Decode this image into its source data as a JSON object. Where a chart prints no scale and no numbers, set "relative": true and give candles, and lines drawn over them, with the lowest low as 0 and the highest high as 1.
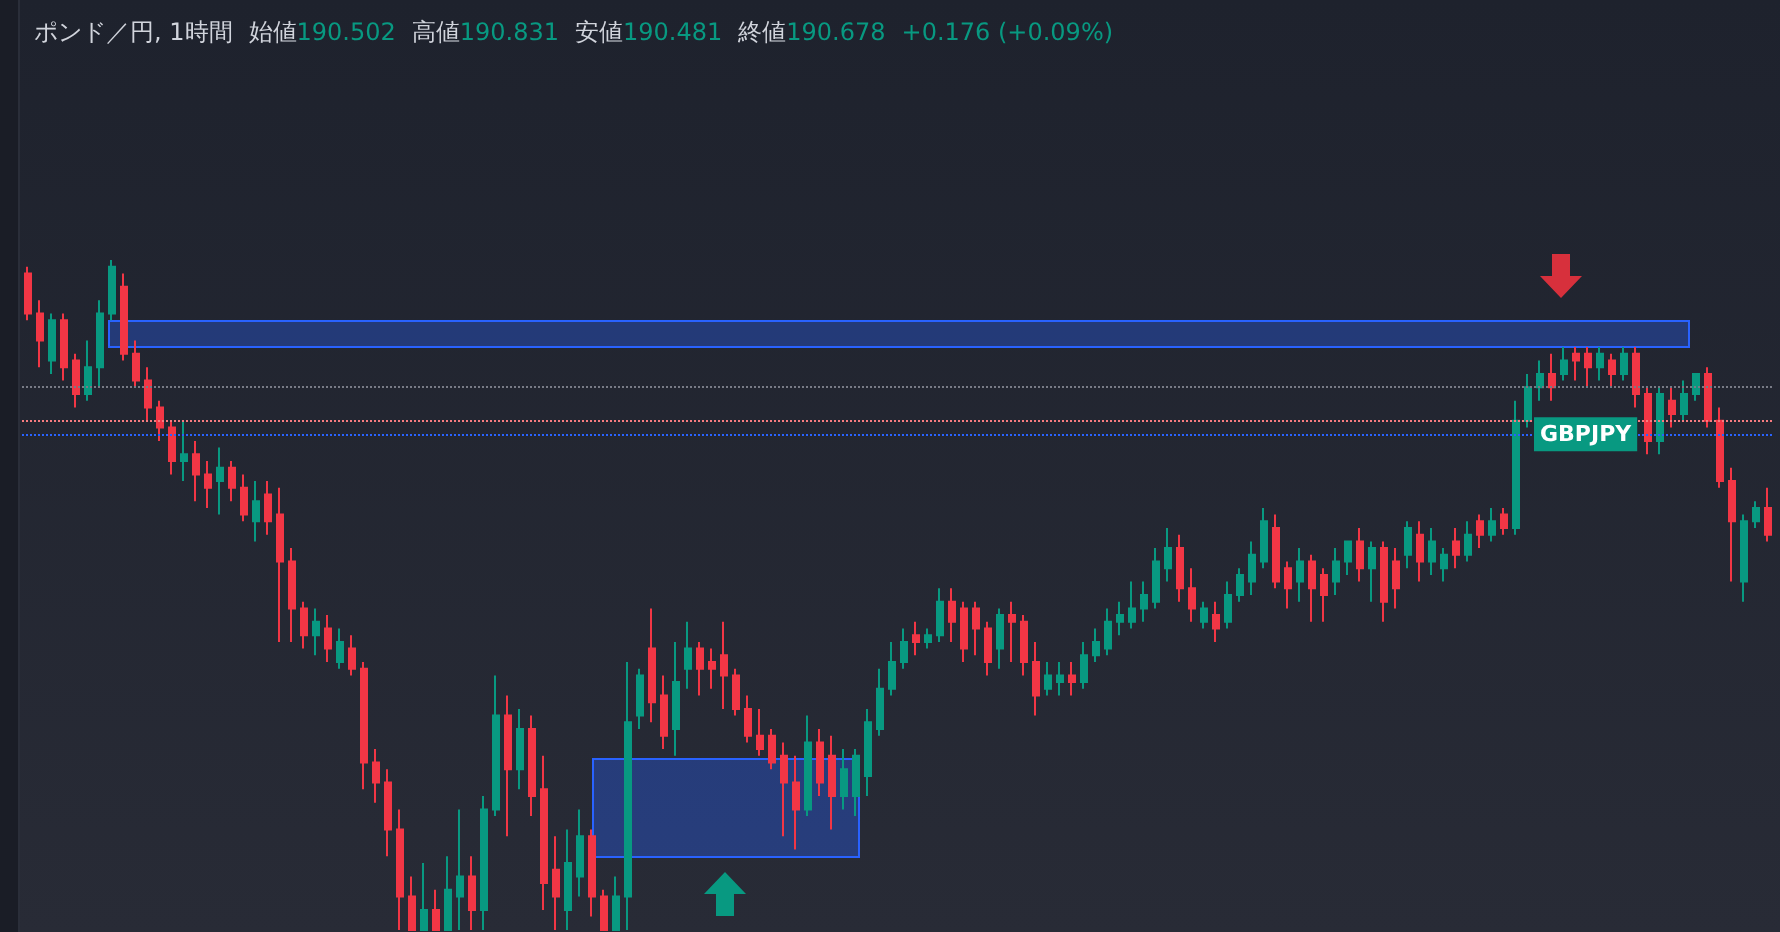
{
  "chart_data": {
    "type": "candlestick",
    "title": "ポンド／円, 1時間",
    "annotations": [
      "始値190.502",
      "高値190.831",
      "安値190.481",
      "終値190.678",
      "+0.176 (+0.09%)"
    ],
    "relative": true,
    "grid": false,
    "categories": [
      null,
      null,
      null,
      null,
      null,
      null,
      null,
      null,
      null,
      null,
      null,
      null,
      null,
      null,
      null,
      null,
      null,
      null,
      null,
      null,
      null,
      null,
      null,
      null,
      null,
      null,
      null,
      null,
      null,
      null,
      null,
      null,
      null,
      null,
      null,
      null,
      null,
      null,
      null,
      null,
      null,
      null,
      null,
      null,
      null,
      null,
      null,
      null,
      null,
      null,
      null,
      null,
      null,
      null,
      null,
      null,
      null,
      null,
      null,
      null,
      null,
      null,
      null,
      null,
      null,
      null,
      null,
      null,
      null,
      null,
      null,
      null,
      null,
      null,
      null,
      null,
      null,
      null,
      null,
      null,
      null,
      null,
      null,
      null,
      null,
      null,
      null,
      null,
      null,
      null,
      null,
      null,
      null,
      null,
      null,
      null,
      null,
      null,
      null,
      null,
      null,
      null,
      null,
      null,
      null,
      null,
      null,
      null,
      null,
      null,
      null,
      null,
      null,
      null,
      null,
      null,
      null,
      null,
      null,
      null,
      null,
      null,
      null,
      null,
      null,
      null,
      null,
      null,
      null,
      null,
      null,
      null,
      null,
      null,
      null,
      null,
      null,
      null,
      null,
      null,
      null,
      null,
      null,
      null,
      null,
      null
    ],
    "ohlc": [
      [
        0.98,
        0.99,
        0.91,
        0.92
      ],
      [
        0.92,
        0.94,
        0.84,
        0.88
      ],
      [
        0.85,
        0.92,
        0.83,
        0.91
      ],
      [
        0.91,
        0.92,
        0.82,
        0.84
      ],
      [
        0.85,
        0.86,
        0.78,
        0.8
      ],
      [
        0.8,
        0.88,
        0.79,
        0.84
      ],
      [
        0.84,
        0.94,
        0.81,
        0.92
      ],
      [
        0.92,
        1.0,
        0.91,
        0.99
      ],
      [
        0.96,
        0.98,
        0.85,
        0.86
      ],
      [
        0.86,
        0.88,
        0.81,
        0.82
      ],
      [
        0.82,
        0.84,
        0.76,
        0.78
      ],
      [
        0.78,
        0.79,
        0.73,
        0.75
      ],
      [
        0.75,
        0.76,
        0.68,
        0.7
      ],
      [
        0.7,
        0.76,
        0.67,
        0.71
      ],
      [
        0.71,
        0.73,
        0.64,
        0.68
      ],
      [
        0.68,
        0.7,
        0.63,
        0.66
      ],
      [
        0.67,
        0.72,
        0.62,
        0.69
      ],
      [
        0.69,
        0.7,
        0.64,
        0.66
      ],
      [
        0.66,
        0.68,
        0.61,
        0.62
      ],
      [
        0.61,
        0.67,
        0.58,
        0.64
      ],
      [
        0.65,
        0.67,
        0.59,
        0.61
      ],
      [
        0.62,
        0.66,
        0.43,
        0.55
      ],
      [
        0.55,
        0.57,
        0.43,
        0.48
      ],
      [
        0.48,
        0.49,
        0.42,
        0.44
      ],
      [
        0.44,
        0.48,
        0.41,
        0.46
      ],
      [
        0.45,
        0.47,
        0.4,
        0.42
      ],
      [
        0.4,
        0.45,
        0.39,
        0.43
      ],
      [
        0.42,
        0.44,
        0.38,
        0.39
      ],
      [
        0.39,
        0.4,
        0.21,
        0.25
      ],
      [
        0.25,
        0.27,
        0.19,
        0.22
      ],
      [
        0.22,
        0.24,
        0.11,
        0.15
      ],
      [
        0.15,
        0.18,
        0.0,
        0.05
      ],
      [
        0.05,
        0.08,
        0.0,
        0.0
      ],
      [
        0.0,
        0.1,
        0.0,
        0.03
      ],
      [
        0.03,
        0.06,
        0.0,
        0.0
      ],
      [
        0.0,
        0.11,
        0.0,
        0.06
      ],
      [
        0.05,
        0.18,
        0.0,
        0.08
      ],
      [
        0.08,
        0.11,
        0.0,
        0.03
      ],
      [
        0.03,
        0.2,
        0.0,
        0.18
      ],
      [
        0.18,
        0.38,
        0.17,
        0.32
      ],
      [
        0.32,
        0.35,
        0.14,
        0.24
      ],
      [
        0.24,
        0.33,
        0.21,
        0.3
      ],
      [
        0.3,
        0.32,
        0.17,
        0.2
      ],
      [
        0.21,
        0.26,
        0.03,
        0.07
      ],
      [
        0.09,
        0.14,
        0.0,
        0.05
      ],
      [
        0.03,
        0.15,
        0.0,
        0.1
      ],
      [
        0.08,
        0.18,
        0.05,
        0.14
      ],
      [
        0.14,
        0.15,
        0.02,
        0.05
      ],
      [
        0.05,
        0.06,
        0.0,
        0.0
      ],
      [
        0.0,
        0.08,
        0.0,
        0.05
      ],
      [
        0.05,
        0.4,
        0.0,
        0.31
      ],
      [
        0.32,
        0.39,
        0.3,
        0.38
      ],
      [
        0.42,
        0.48,
        0.31,
        0.34
      ],
      [
        0.35,
        0.38,
        0.27,
        0.29
      ],
      [
        0.3,
        0.43,
        0.26,
        0.37
      ],
      [
        0.39,
        0.46,
        0.36,
        0.42
      ],
      [
        0.42,
        0.43,
        0.35,
        0.39
      ],
      [
        0.4,
        0.42,
        0.36,
        0.39
      ],
      [
        0.41,
        0.46,
        0.33,
        0.38
      ],
      [
        0.38,
        0.39,
        0.32,
        0.33
      ],
      [
        0.33,
        0.35,
        0.28,
        0.29
      ],
      [
        0.29,
        0.33,
        0.26,
        0.27
      ],
      [
        0.29,
        0.3,
        0.24,
        0.25
      ],
      [
        0.26,
        0.28,
        0.14,
        0.22
      ],
      [
        0.22,
        0.26,
        0.12,
        0.18
      ],
      [
        0.18,
        0.32,
        0.17,
        0.28
      ],
      [
        0.28,
        0.3,
        0.2,
        0.22
      ],
      [
        0.26,
        0.29,
        0.15,
        0.2
      ],
      [
        0.2,
        0.27,
        0.18,
        0.24
      ],
      [
        0.2,
        0.27,
        0.17,
        0.26
      ],
      [
        0.23,
        0.33,
        0.2,
        0.31
      ],
      [
        0.3,
        0.39,
        0.29,
        0.36
      ],
      [
        0.36,
        0.43,
        0.35,
        0.4
      ],
      [
        0.4,
        0.45,
        0.39,
        0.43
      ],
      [
        0.44,
        0.46,
        0.41,
        0.43
      ],
      [
        0.43,
        0.45,
        0.42,
        0.44
      ],
      [
        0.44,
        0.51,
        0.43,
        0.49
      ],
      [
        0.49,
        0.51,
        0.43,
        0.46
      ],
      [
        0.48,
        0.49,
        0.4,
        0.42
      ],
      [
        0.48,
        0.49,
        0.41,
        0.45
      ],
      [
        0.45,
        0.46,
        0.38,
        0.4
      ],
      [
        0.42,
        0.48,
        0.39,
        0.47
      ],
      [
        0.47,
        0.49,
        0.4,
        0.46
      ],
      [
        0.46,
        0.47,
        0.38,
        0.4
      ],
      [
        0.4,
        0.43,
        0.32,
        0.35
      ],
      [
        0.36,
        0.4,
        0.35,
        0.38
      ],
      [
        0.37,
        0.4,
        0.35,
        0.38
      ],
      [
        0.38,
        0.4,
        0.35,
        0.37
      ],
      [
        0.37,
        0.43,
        0.36,
        0.41
      ],
      [
        0.41,
        0.45,
        0.4,
        0.43
      ],
      [
        0.42,
        0.48,
        0.41,
        0.46
      ],
      [
        0.46,
        0.49,
        0.44,
        0.47
      ],
      [
        0.46,
        0.52,
        0.45,
        0.48
      ],
      [
        0.48,
        0.52,
        0.46,
        0.5
      ],
      [
        0.49,
        0.57,
        0.48,
        0.55
      ],
      [
        0.54,
        0.6,
        0.52,
        0.57
      ],
      [
        0.57,
        0.59,
        0.49,
        0.51
      ],
      [
        0.51,
        0.54,
        0.46,
        0.48
      ],
      [
        0.46,
        0.49,
        0.45,
        0.48
      ],
      [
        0.47,
        0.49,
        0.43,
        0.45
      ],
      [
        0.46,
        0.52,
        0.45,
        0.5
      ],
      [
        0.5,
        0.54,
        0.49,
        0.53
      ],
      [
        0.52,
        0.58,
        0.5,
        0.56
      ],
      [
        0.55,
        0.63,
        0.54,
        0.61
      ],
      [
        0.6,
        0.62,
        0.51,
        0.52
      ],
      [
        0.54,
        0.55,
        0.48,
        0.51
      ],
      [
        0.52,
        0.57,
        0.49,
        0.55
      ],
      [
        0.55,
        0.56,
        0.46,
        0.51
      ],
      [
        0.53,
        0.54,
        0.46,
        0.5
      ],
      [
        0.52,
        0.57,
        0.5,
        0.55
      ],
      [
        0.55,
        0.58,
        0.53,
        0.58
      ],
      [
        0.58,
        0.6,
        0.52,
        0.54
      ],
      [
        0.54,
        0.58,
        0.49,
        0.57
      ],
      [
        0.57,
        0.58,
        0.46,
        0.49
      ],
      [
        0.55,
        0.57,
        0.48,
        0.51
      ],
      [
        0.56,
        0.61,
        0.54,
        0.6
      ],
      [
        0.59,
        0.61,
        0.52,
        0.55
      ],
      [
        0.55,
        0.6,
        0.53,
        0.58
      ],
      [
        0.54,
        0.57,
        0.52,
        0.56
      ],
      [
        0.58,
        0.6,
        0.54,
        0.56
      ],
      [
        0.56,
        0.61,
        0.55,
        0.59
      ],
      [
        0.61,
        0.62,
        0.57,
        0.59
      ],
      [
        0.59,
        0.63,
        0.58,
        0.61
      ],
      [
        0.62,
        0.63,
        0.59,
        0.6
      ],
      [
        0.6,
        0.79,
        0.59,
        0.76
      ],
      [
        0.76,
        0.83,
        0.75,
        0.81
      ],
      [
        0.81,
        0.85,
        0.79,
        0.83
      ],
      [
        0.83,
        0.86,
        0.79,
        0.81
      ],
      [
        0.83,
        0.87,
        0.82,
        0.85
      ],
      [
        0.86,
        0.87,
        0.82,
        0.85
      ],
      [
        0.86,
        0.87,
        0.81,
        0.84
      ],
      [
        0.84,
        0.87,
        0.82,
        0.86
      ],
      [
        0.85,
        0.86,
        0.81,
        0.83
      ],
      [
        0.83,
        0.87,
        0.82,
        0.86
      ],
      [
        0.86,
        0.87,
        0.78,
        0.8
      ],
      [
        0.8,
        0.81,
        0.71,
        0.73
      ],
      [
        0.73,
        0.81,
        0.71,
        0.8
      ],
      [
        0.79,
        0.81,
        0.75,
        0.77
      ],
      [
        0.77,
        0.82,
        0.76,
        0.8
      ],
      [
        0.8,
        0.83,
        0.79,
        0.83
      ],
      [
        0.83,
        0.84,
        0.75,
        0.76
      ],
      [
        0.76,
        0.78,
        0.66,
        0.67
      ],
      [
        0.67,
        0.69,
        0.52,
        0.61
      ],
      [
        0.52,
        0.62,
        0.49,
        0.61
      ],
      [
        0.61,
        0.64,
        0.6,
        0.63
      ],
      [
        0.63,
        0.66,
        0.58,
        0.59
      ]
    ],
    "ref_lines": [
      {
        "axis": "y",
        "value": 0.81,
        "label": null,
        "color": "#787b86",
        "line_style": "dotted"
      },
      {
        "axis": "y",
        "value": 0.76,
        "label": null,
        "color": "#f77c80",
        "line_style": "dotted"
      },
      {
        "axis": "y",
        "value": 0.74,
        "label": "GBPJPY",
        "color": "#2962ff",
        "line_style": "dotted"
      }
    ]
  }
}
